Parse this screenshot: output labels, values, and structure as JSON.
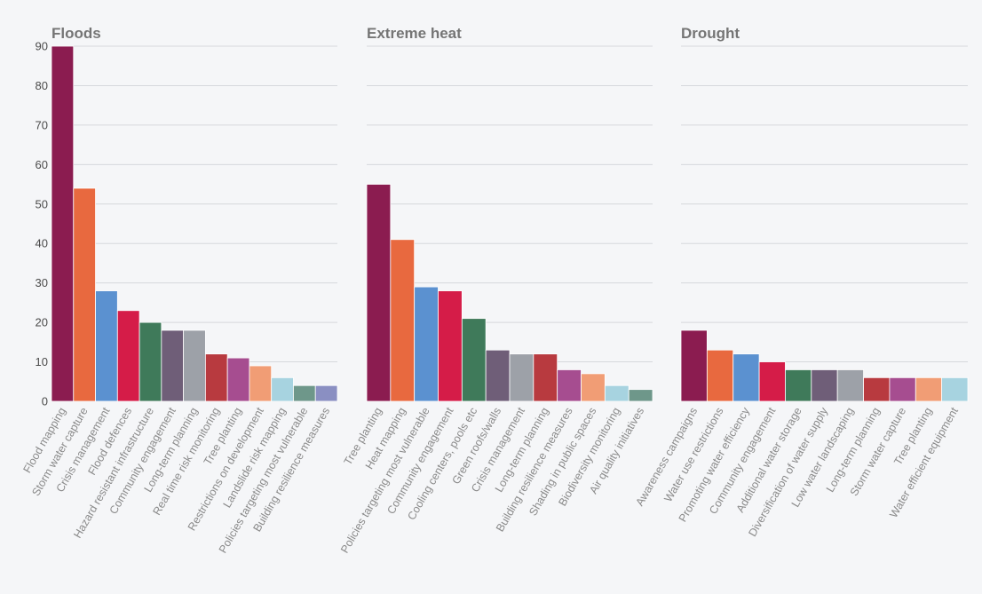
{
  "chart_data": [
    {
      "type": "bar",
      "title": "Floods",
      "categories": [
        "Flood mapping",
        "Storm water capture",
        "Crisis management",
        "Flood defences",
        "Hazard resistant infrastructure",
        "Community engagement",
        "Long-term planning",
        "Real time risk monitoring",
        "Tree planting",
        "Restrictions on development",
        "Landslide risk mapping",
        "Policies targeting most vulnerable",
        "Building resilience measures"
      ],
      "values": [
        90,
        54,
        28,
        23,
        20,
        18,
        18,
        12,
        11,
        9,
        6,
        4,
        4
      ],
      "colors": [
        "#8b1c50",
        "#e8693f",
        "#5b91d0",
        "#d51c48",
        "#3f7a5a",
        "#6f5e78",
        "#9da1a8",
        "#b83a3f",
        "#a64d90",
        "#f19d75",
        "#a7d3e0",
        "#6e978a",
        "#8a8fc2"
      ],
      "ylim": [
        0,
        90
      ],
      "yticks": [
        0,
        10,
        20,
        30,
        40,
        50,
        60,
        70,
        80,
        90
      ],
      "xlabel": "",
      "ylabel": ""
    },
    {
      "type": "bar",
      "title": "Extreme heat",
      "categories": [
        "Tree planting",
        "Heat mapping",
        "Policies targeting most vulnerable",
        "Community engagement",
        "Cooling centers, pools etc",
        "Green roofs/walls",
        "Crisis management",
        "Long-term planning",
        "Building resilience measures",
        "Shading in public spaces",
        "Biodiversity monitoring",
        "Air quality initiatives"
      ],
      "values": [
        55,
        41,
        29,
        28,
        21,
        13,
        12,
        12,
        8,
        7,
        4,
        3
      ],
      "colors": [
        "#8b1c50",
        "#e8693f",
        "#5b91d0",
        "#d51c48",
        "#3f7a5a",
        "#6f5e78",
        "#9da1a8",
        "#b83a3f",
        "#a64d90",
        "#f19d75",
        "#a7d3e0",
        "#6e978a"
      ],
      "ylim": [
        0,
        90
      ],
      "xlabel": "",
      "ylabel": ""
    },
    {
      "type": "bar",
      "title": "Drought",
      "categories": [
        "Awareness campaigns",
        "Water use restrictions",
        "Promoting water efficiency",
        "Community engagement",
        "Additional water storage",
        "Diversification of water supply",
        "Low water landscaping",
        "Long-term planning",
        "Storm water capture",
        "Tree planting",
        "Water efficient equipment"
      ],
      "values": [
        18,
        13,
        12,
        10,
        8,
        8,
        8,
        6,
        6,
        6,
        6
      ],
      "colors": [
        "#8b1c50",
        "#e8693f",
        "#5b91d0",
        "#d51c48",
        "#3f7a5a",
        "#6f5e78",
        "#9da1a8",
        "#b83a3f",
        "#a64d90",
        "#f19d75",
        "#a7d3e0"
      ],
      "ylim": [
        0,
        90
      ],
      "xlabel": "",
      "ylabel": ""
    }
  ]
}
